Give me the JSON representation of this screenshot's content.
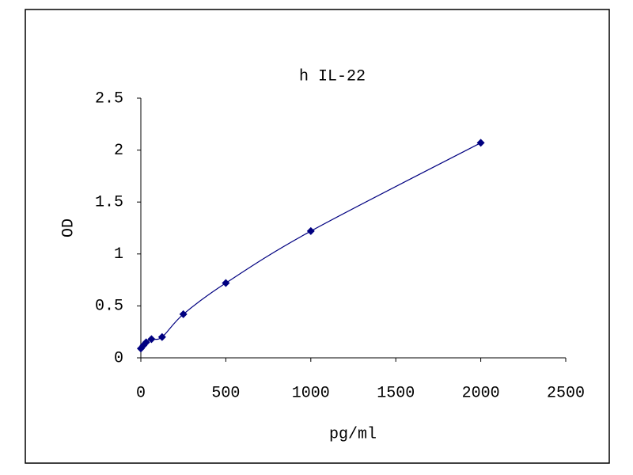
{
  "chart_data": {
    "type": "scatter",
    "title": "h IL-22",
    "x_label": "pg/ml",
    "y_label": "OD",
    "x": [
      0,
      15.6,
      31.25,
      62.5,
      125,
      250,
      500,
      1000,
      2000
    ],
    "values": [
      0.09,
      0.12,
      0.15,
      0.18,
      0.2,
      0.42,
      0.72,
      1.22,
      2.07
    ],
    "color": "#000080",
    "smooth": true,
    "xlim": [
      0,
      2500
    ],
    "xticks": [
      0,
      500,
      1000,
      1500,
      2000,
      2500
    ],
    "ylim": [
      0,
      2.5
    ],
    "yticks": [
      0,
      0.5,
      1,
      1.5,
      2,
      2.5
    ],
    "grid": false
  }
}
